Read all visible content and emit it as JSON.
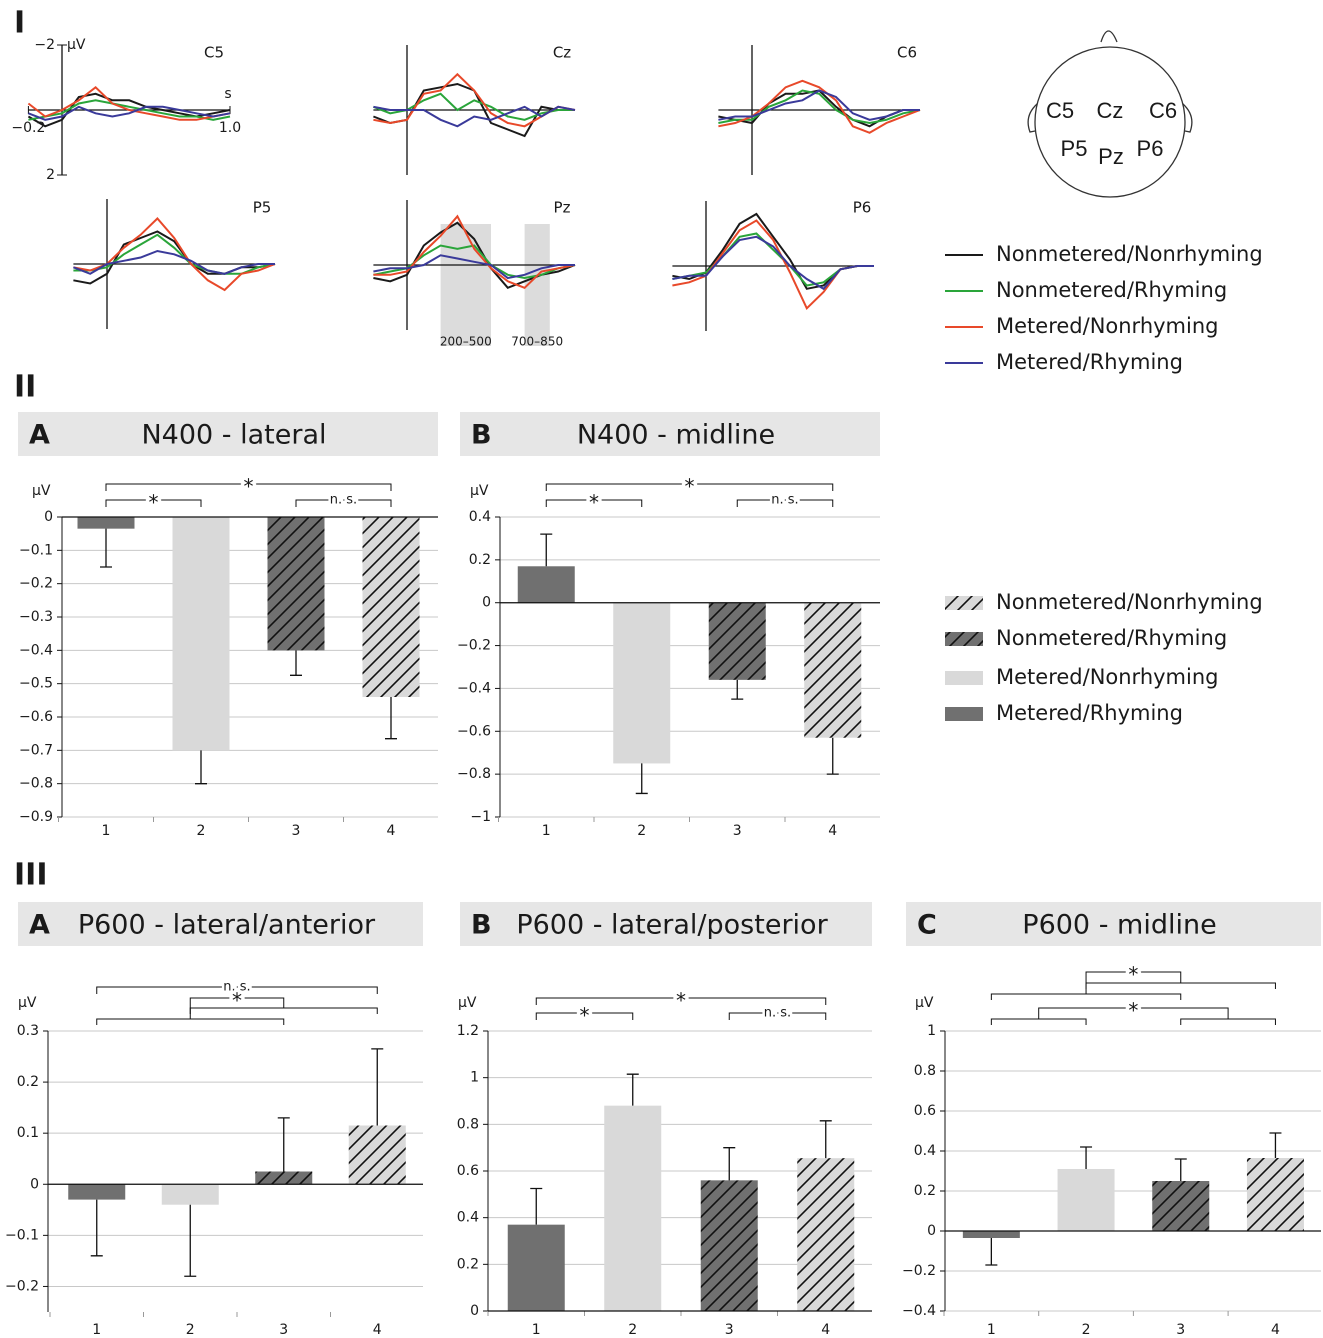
{
  "sections": [
    "I",
    "II",
    "III"
  ],
  "head": {
    "electrodes": [
      "C5",
      "Cz",
      "C6",
      "P5",
      "Pz",
      "P6"
    ]
  },
  "chart_data": [
    {
      "type": "line",
      "title": "C5",
      "x": [
        -0.2,
        -0.1,
        0,
        0.1,
        0.2,
        0.3,
        0.4,
        0.5,
        0.6,
        0.7,
        0.8,
        0.9,
        1.0
      ],
      "xlim": [
        -0.2,
        1.0
      ],
      "ylim": [
        -2,
        2
      ],
      "y_inverted": true,
      "xticks": [
        {
          "value": -0.2,
          "label": "−0.2"
        },
        {
          "value": 1.0,
          "label": "1.0"
        }
      ],
      "yticks": [
        {
          "value": -2,
          "label": "−2"
        },
        {
          "value": 2,
          "label": "2"
        }
      ],
      "x_label": "s",
      "y_label": "µV",
      "series": [
        {
          "name": "Nonmetered/Nonrhyming",
          "color": "#1a1a1a",
          "values": [
            0.2,
            0.5,
            0.3,
            -0.4,
            -0.5,
            -0.3,
            -0.3,
            -0.1,
            0,
            0.1,
            0.2,
            0.1,
            0
          ]
        },
        {
          "name": "Nonmetered/Rhyming",
          "color": "#2aa53a",
          "values": [
            0.3,
            0.2,
            0.1,
            -0.2,
            -0.3,
            -0.2,
            -0.1,
            0,
            0.1,
            0.2,
            0.2,
            0.3,
            0.2
          ]
        },
        {
          "name": "Metered/Nonrhyming",
          "color": "#e8492a",
          "values": [
            -0.2,
            0.2,
            0,
            -0.3,
            -0.7,
            -0.2,
            0,
            0.1,
            0.2,
            0.3,
            0.3,
            0.2,
            0.1
          ]
        },
        {
          "name": "Metered/Rhyming",
          "color": "#3a3a9a",
          "values": [
            0.1,
            0.3,
            0.2,
            -0.1,
            0.1,
            0.2,
            0.1,
            -0.1,
            -0.1,
            0,
            0.1,
            0.2,
            0.1
          ]
        }
      ]
    },
    {
      "type": "line",
      "title": "Cz",
      "x": [
        -0.2,
        -0.1,
        0,
        0.1,
        0.2,
        0.3,
        0.4,
        0.5,
        0.6,
        0.7,
        0.8,
        0.9,
        1.0
      ],
      "xlim": [
        -0.2,
        1.0
      ],
      "ylim": [
        -2,
        2
      ],
      "y_inverted": true,
      "series": [
        {
          "color": "#1a1a1a",
          "values": [
            0.2,
            0.4,
            0.3,
            -0.6,
            -0.7,
            -0.8,
            -0.6,
            0.4,
            0.6,
            0.8,
            -0.1,
            0,
            0
          ]
        },
        {
          "color": "#2aa53a",
          "values": [
            -0.1,
            0.1,
            0,
            -0.3,
            -0.5,
            0,
            -0.3,
            -0.1,
            0.2,
            0.3,
            0.1,
            0,
            0
          ]
        },
        {
          "color": "#e8492a",
          "values": [
            0.3,
            0.4,
            0.3,
            -0.5,
            -0.6,
            -1.1,
            -0.6,
            0.1,
            0.4,
            0.5,
            0.2,
            -0.1,
            0
          ]
        },
        {
          "color": "#3a3a9a",
          "values": [
            -0.1,
            0,
            0,
            0,
            0.3,
            0.5,
            0.2,
            0.3,
            0.1,
            -0.1,
            0.2,
            -0.1,
            0
          ]
        }
      ]
    },
    {
      "type": "line",
      "title": "C6",
      "x": [
        -0.2,
        -0.1,
        0,
        0.1,
        0.2,
        0.3,
        0.4,
        0.5,
        0.6,
        0.7,
        0.8,
        0.9,
        1.0
      ],
      "xlim": [
        -0.2,
        1.0
      ],
      "ylim": [
        -2,
        2
      ],
      "y_inverted": true,
      "series": [
        {
          "color": "#1a1a1a",
          "values": [
            0.2,
            0.3,
            0.4,
            -0.2,
            -0.5,
            -0.5,
            -0.6,
            -0.1,
            0.3,
            0.5,
            0.2,
            0,
            0
          ]
        },
        {
          "color": "#2aa53a",
          "values": [
            0.4,
            0.3,
            0.3,
            -0.1,
            -0.3,
            -0.6,
            -0.5,
            0,
            0.3,
            0.4,
            0.3,
            0.1,
            0
          ]
        },
        {
          "color": "#e8492a",
          "values": [
            0.5,
            0.4,
            0.2,
            -0.2,
            -0.7,
            -0.9,
            -0.7,
            -0.3,
            0.5,
            0.7,
            0.4,
            0.2,
            0
          ]
        },
        {
          "color": "#3a3a9a",
          "values": [
            0.3,
            0.2,
            0.2,
            0,
            -0.2,
            -0.3,
            -0.6,
            -0.4,
            0.1,
            0.3,
            0.2,
            0,
            0
          ]
        }
      ]
    },
    {
      "type": "line",
      "title": "P5",
      "x": [
        -0.2,
        -0.1,
        0,
        0.1,
        0.2,
        0.3,
        0.4,
        0.5,
        0.6,
        0.7,
        0.8,
        0.9,
        1.0
      ],
      "xlim": [
        -0.2,
        1.0
      ],
      "ylim": [
        -2,
        2
      ],
      "y_inverted": true,
      "series": [
        {
          "color": "#1a1a1a",
          "values": [
            0.5,
            0.6,
            0.3,
            -0.6,
            -0.8,
            -1.0,
            -0.7,
            0,
            0.3,
            0.3,
            0.1,
            0.1,
            0
          ]
        },
        {
          "color": "#2aa53a",
          "values": [
            0.2,
            0.2,
            0.1,
            -0.3,
            -0.6,
            -0.9,
            -0.5,
            0,
            0.2,
            0.3,
            0.3,
            0.1,
            0
          ]
        },
        {
          "color": "#e8492a",
          "values": [
            0.1,
            0.2,
            0,
            -0.5,
            -0.9,
            -1.4,
            -0.8,
            0,
            0.5,
            0.8,
            0.3,
            0.2,
            0
          ]
        },
        {
          "color": "#3a3a9a",
          "values": [
            0.1,
            0.3,
            0,
            -0.1,
            -0.2,
            -0.4,
            -0.3,
            -0.1,
            0.2,
            0.3,
            0.1,
            0,
            0
          ]
        }
      ]
    },
    {
      "type": "line",
      "title": "Pz",
      "x": [
        -0.2,
        -0.1,
        0,
        0.1,
        0.2,
        0.3,
        0.4,
        0.5,
        0.6,
        0.7,
        0.8,
        0.9,
        1.0
      ],
      "xlim": [
        -0.2,
        1.0
      ],
      "ylim": [
        -2,
        2
      ],
      "y_inverted": true,
      "windows": [
        {
          "range": [
            0.2,
            0.5
          ],
          "label": "200–500"
        },
        {
          "range": [
            0.7,
            0.85
          ],
          "label": "700–850"
        }
      ],
      "series": [
        {
          "color": "#1a1a1a",
          "values": [
            0.4,
            0.5,
            0.3,
            -0.6,
            -1.0,
            -1.3,
            -0.8,
            0.1,
            0.7,
            0.5,
            0.3,
            0.2,
            0
          ]
        },
        {
          "color": "#2aa53a",
          "values": [
            0.3,
            0.2,
            0.1,
            -0.3,
            -0.6,
            -0.5,
            -0.6,
            0,
            0.3,
            0.4,
            0.3,
            0.1,
            0
          ]
        },
        {
          "color": "#e8492a",
          "values": [
            0.3,
            0.3,
            0.2,
            -0.4,
            -0.9,
            -1.5,
            -0.5,
            0.1,
            0.5,
            0.7,
            0.2,
            0.1,
            0
          ]
        },
        {
          "color": "#3a3a9a",
          "values": [
            0.2,
            0.1,
            0.1,
            0,
            -0.3,
            -0.2,
            -0.1,
            0,
            0.4,
            0.3,
            0.1,
            0,
            0
          ]
        }
      ]
    },
    {
      "type": "line",
      "title": "P6",
      "x": [
        -0.2,
        -0.1,
        0,
        0.1,
        0.2,
        0.3,
        0.4,
        0.5,
        0.6,
        0.7,
        0.8,
        0.9,
        1.0
      ],
      "xlim": [
        -0.2,
        1.0
      ],
      "ylim": [
        -2,
        2
      ],
      "y_inverted": true,
      "series": [
        {
          "color": "#1a1a1a",
          "values": [
            0.3,
            0.4,
            0.2,
            -0.5,
            -1.3,
            -1.6,
            -0.9,
            -0.2,
            0.7,
            0.6,
            0.1,
            0,
            0
          ]
        },
        {
          "color": "#2aa53a",
          "values": [
            0.4,
            0.3,
            0.2,
            -0.3,
            -0.9,
            -1.0,
            -0.5,
            0,
            0.6,
            0.5,
            0.1,
            0,
            0
          ]
        },
        {
          "color": "#e8492a",
          "values": [
            0.6,
            0.5,
            0.3,
            -0.4,
            -1.1,
            -1.4,
            -0.8,
            0.2,
            1.3,
            0.8,
            0.1,
            0,
            0
          ]
        },
        {
          "color": "#3a3a9a",
          "values": [
            0.4,
            0.3,
            0.3,
            -0.3,
            -0.8,
            -0.9,
            -0.6,
            0,
            0.4,
            0.7,
            0.1,
            0,
            0
          ]
        }
      ]
    },
    {
      "type": "bar",
      "panel": "A",
      "title": "N400 - lateral",
      "y_label": "µV",
      "categories": [
        "1",
        "2",
        "3",
        "4"
      ],
      "values": [
        -0.035,
        -0.7,
        -0.4,
        -0.54
      ],
      "errors": [
        0.115,
        0.1,
        0.075,
        0.125
      ],
      "colors": [
        "#707070",
        "#d9d9d9",
        "#707070",
        "#d9d9d9"
      ],
      "hatch": [
        false,
        false,
        true,
        true
      ],
      "ylim": [
        -0.9,
        0
      ],
      "grid": true,
      "yticks": [
        0,
        {
          "value": -0.1,
          "label": "−0.1"
        },
        {
          "value": -0.2,
          "label": "−0.2"
        },
        {
          "value": -0.3,
          "label": "−0.3"
        },
        {
          "value": -0.4,
          "label": "−0.4"
        },
        {
          "value": -0.5,
          "label": "−0.5"
        },
        {
          "value": -0.6,
          "label": "−0.6"
        },
        {
          "value": -0.7,
          "label": "−0.7"
        },
        {
          "value": -0.8,
          "label": "−0.8"
        },
        {
          "value": -0.9,
          "label": "−0.9"
        }
      ],
      "comparisons": [
        {
          "groups": [
            [
              "1"
            ],
            [
              "2"
            ]
          ],
          "label": "*"
        },
        {
          "groups": [
            [
              "3"
            ],
            [
              "4"
            ]
          ],
          "label": "n. s."
        },
        {
          "groups": [
            [
              "1"
            ],
            [
              "4"
            ]
          ],
          "label": "*"
        }
      ],
      "legend": [
        {
          "name": "Nonmetered/Nonrhyming",
          "color": "#d9d9d9",
          "hatch": true
        },
        {
          "name": "Nonmetered/Rhyming",
          "color": "#707070",
          "hatch": true
        },
        {
          "name": "Metered/Nonrhyming",
          "color": "#d9d9d9",
          "hatch": false
        },
        {
          "name": "Metered/Rhyming",
          "color": "#707070",
          "hatch": false
        }
      ]
    },
    {
      "type": "bar",
      "panel": "B",
      "title": "N400 - midline",
      "y_label": "µV",
      "categories": [
        "1",
        "2",
        "3",
        "4"
      ],
      "values": [
        0.17,
        -0.75,
        -0.36,
        -0.63
      ],
      "errors": [
        0.15,
        0.14,
        0.09,
        0.17
      ],
      "colors": [
        "#707070",
        "#d9d9d9",
        "#707070",
        "#d9d9d9"
      ],
      "hatch": [
        false,
        false,
        true,
        true
      ],
      "ylim": [
        -1,
        0.4
      ],
      "grid": true,
      "yticks": [
        0.4,
        0.2,
        0,
        {
          "value": -0.2,
          "label": "−0.2"
        },
        {
          "value": -0.4,
          "label": "−0.4"
        },
        {
          "value": -0.6,
          "label": "−0.6"
        },
        {
          "value": -0.8,
          "label": "−0.8"
        },
        {
          "value": -1,
          "label": "−1"
        }
      ],
      "comparisons": [
        {
          "groups": [
            [
              "1"
            ],
            [
              "2"
            ]
          ],
          "label": "*"
        },
        {
          "groups": [
            [
              "3"
            ],
            [
              "4"
            ]
          ],
          "label": "n. s."
        },
        {
          "groups": [
            [
              "1"
            ],
            [
              "4"
            ]
          ],
          "label": "*"
        }
      ]
    },
    {
      "type": "bar",
      "panel": "A",
      "title": "P600 - lateral/anterior",
      "y_label": "µV",
      "categories": [
        "1",
        "2",
        "3",
        "4"
      ],
      "values": [
        -0.03,
        -0.04,
        0.025,
        0.115
      ],
      "errors": [
        0.11,
        0.14,
        0.105,
        0.15
      ],
      "colors": [
        "#707070",
        "#d9d9d9",
        "#707070",
        "#d9d9d9"
      ],
      "hatch": [
        false,
        false,
        true,
        true
      ],
      "ylim": [
        -0.25,
        0.3
      ],
      "grid": true,
      "yticks": [
        0.3,
        0.2,
        0.1,
        0,
        {
          "value": -0.1,
          "label": "−0.1"
        },
        {
          "value": -0.2,
          "label": "−0.2"
        }
      ],
      "comparisons": [
        {
          "groups": [
            [
              "1"
            ],
            [
              "4"
            ]
          ],
          "label": "n. s."
        },
        {
          "groups": [
            [
              "1",
              "3"
            ],
            [
              "2",
              "4"
            ]
          ],
          "label": "*"
        }
      ]
    },
    {
      "type": "bar",
      "panel": "B",
      "title": "P600 - lateral/posterior",
      "y_label": "µV",
      "categories": [
        "1",
        "2",
        "3",
        "4"
      ],
      "values": [
        0.37,
        0.88,
        0.56,
        0.655
      ],
      "errors": [
        0.155,
        0.135,
        0.14,
        0.16
      ],
      "colors": [
        "#707070",
        "#d9d9d9",
        "#707070",
        "#d9d9d9"
      ],
      "hatch": [
        false,
        false,
        true,
        true
      ],
      "ylim": [
        0,
        1.2
      ],
      "grid": true,
      "yticks": [
        1.2,
        1,
        0.8,
        0.6,
        0.4,
        0.2,
        0
      ],
      "comparisons": [
        {
          "groups": [
            [
              "1"
            ],
            [
              "2"
            ]
          ],
          "label": "*"
        },
        {
          "groups": [
            [
              "3"
            ],
            [
              "4"
            ]
          ],
          "label": "n. s."
        },
        {
          "groups": [
            [
              "1"
            ],
            [
              "4"
            ]
          ],
          "label": "*"
        }
      ]
    },
    {
      "type": "bar",
      "panel": "C",
      "title": "P600 - midline",
      "y_label": "µV",
      "categories": [
        "1",
        "2",
        "3",
        "4"
      ],
      "values": [
        -0.035,
        0.31,
        0.25,
        0.365
      ],
      "errors": [
        0.135,
        0.11,
        0.11,
        0.125
      ],
      "colors": [
        "#707070",
        "#d9d9d9",
        "#707070",
        "#d9d9d9"
      ],
      "hatch": [
        false,
        false,
        true,
        true
      ],
      "ylim": [
        -0.4,
        1
      ],
      "grid": true,
      "yticks": [
        1,
        0.8,
        0.6,
        0.4,
        0.2,
        0,
        {
          "value": -0.2,
          "label": "−0.2"
        },
        {
          "value": -0.4,
          "label": "−0.4"
        }
      ],
      "comparisons": [
        {
          "groups": [
            [
              "1",
              "3"
            ],
            [
              "2",
              "4"
            ]
          ],
          "label": "*"
        },
        {
          "groups": [
            [
              "1",
              "2"
            ],
            [
              "3",
              "4"
            ]
          ],
          "label": "*"
        }
      ]
    }
  ]
}
